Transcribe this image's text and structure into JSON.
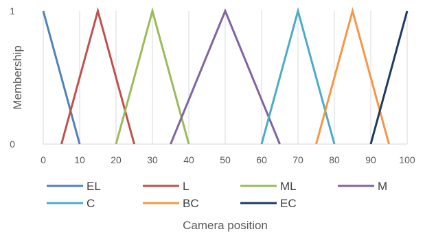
{
  "chart_data": {
    "type": "line",
    "title": "",
    "xlabel": "Camera position",
    "ylabel": "Membership",
    "xlim": [
      0,
      100
    ],
    "ylim": [
      0,
      1
    ],
    "xticks": [
      0,
      10,
      20,
      30,
      40,
      50,
      60,
      70,
      80,
      90,
      100
    ],
    "yticks": [
      0,
      1
    ],
    "grid": "vertical",
    "legend_position": "bottom",
    "series": [
      {
        "name": "EL",
        "color": "#4F81BD",
        "points": [
          [
            0,
            1
          ],
          [
            10,
            0
          ]
        ]
      },
      {
        "name": "L",
        "color": "#C0504D",
        "points": [
          [
            5,
            0
          ],
          [
            15,
            1
          ],
          [
            25,
            0
          ]
        ]
      },
      {
        "name": "ML",
        "color": "#9BBB59",
        "points": [
          [
            20,
            0
          ],
          [
            30,
            1
          ],
          [
            40,
            0
          ]
        ]
      },
      {
        "name": "M",
        "color": "#8064A2",
        "points": [
          [
            35,
            0
          ],
          [
            50,
            1
          ],
          [
            65,
            0
          ]
        ]
      },
      {
        "name": "C",
        "color": "#4BACC6",
        "points": [
          [
            60,
            0
          ],
          [
            70,
            1
          ],
          [
            80,
            0
          ]
        ]
      },
      {
        "name": "BC",
        "color": "#F79646",
        "points": [
          [
            75,
            0
          ],
          [
            85,
            1
          ],
          [
            95,
            0
          ]
        ]
      },
      {
        "name": "EC",
        "color": "#1F3A5F",
        "points": [
          [
            90,
            0
          ],
          [
            100,
            1
          ]
        ]
      }
    ]
  }
}
